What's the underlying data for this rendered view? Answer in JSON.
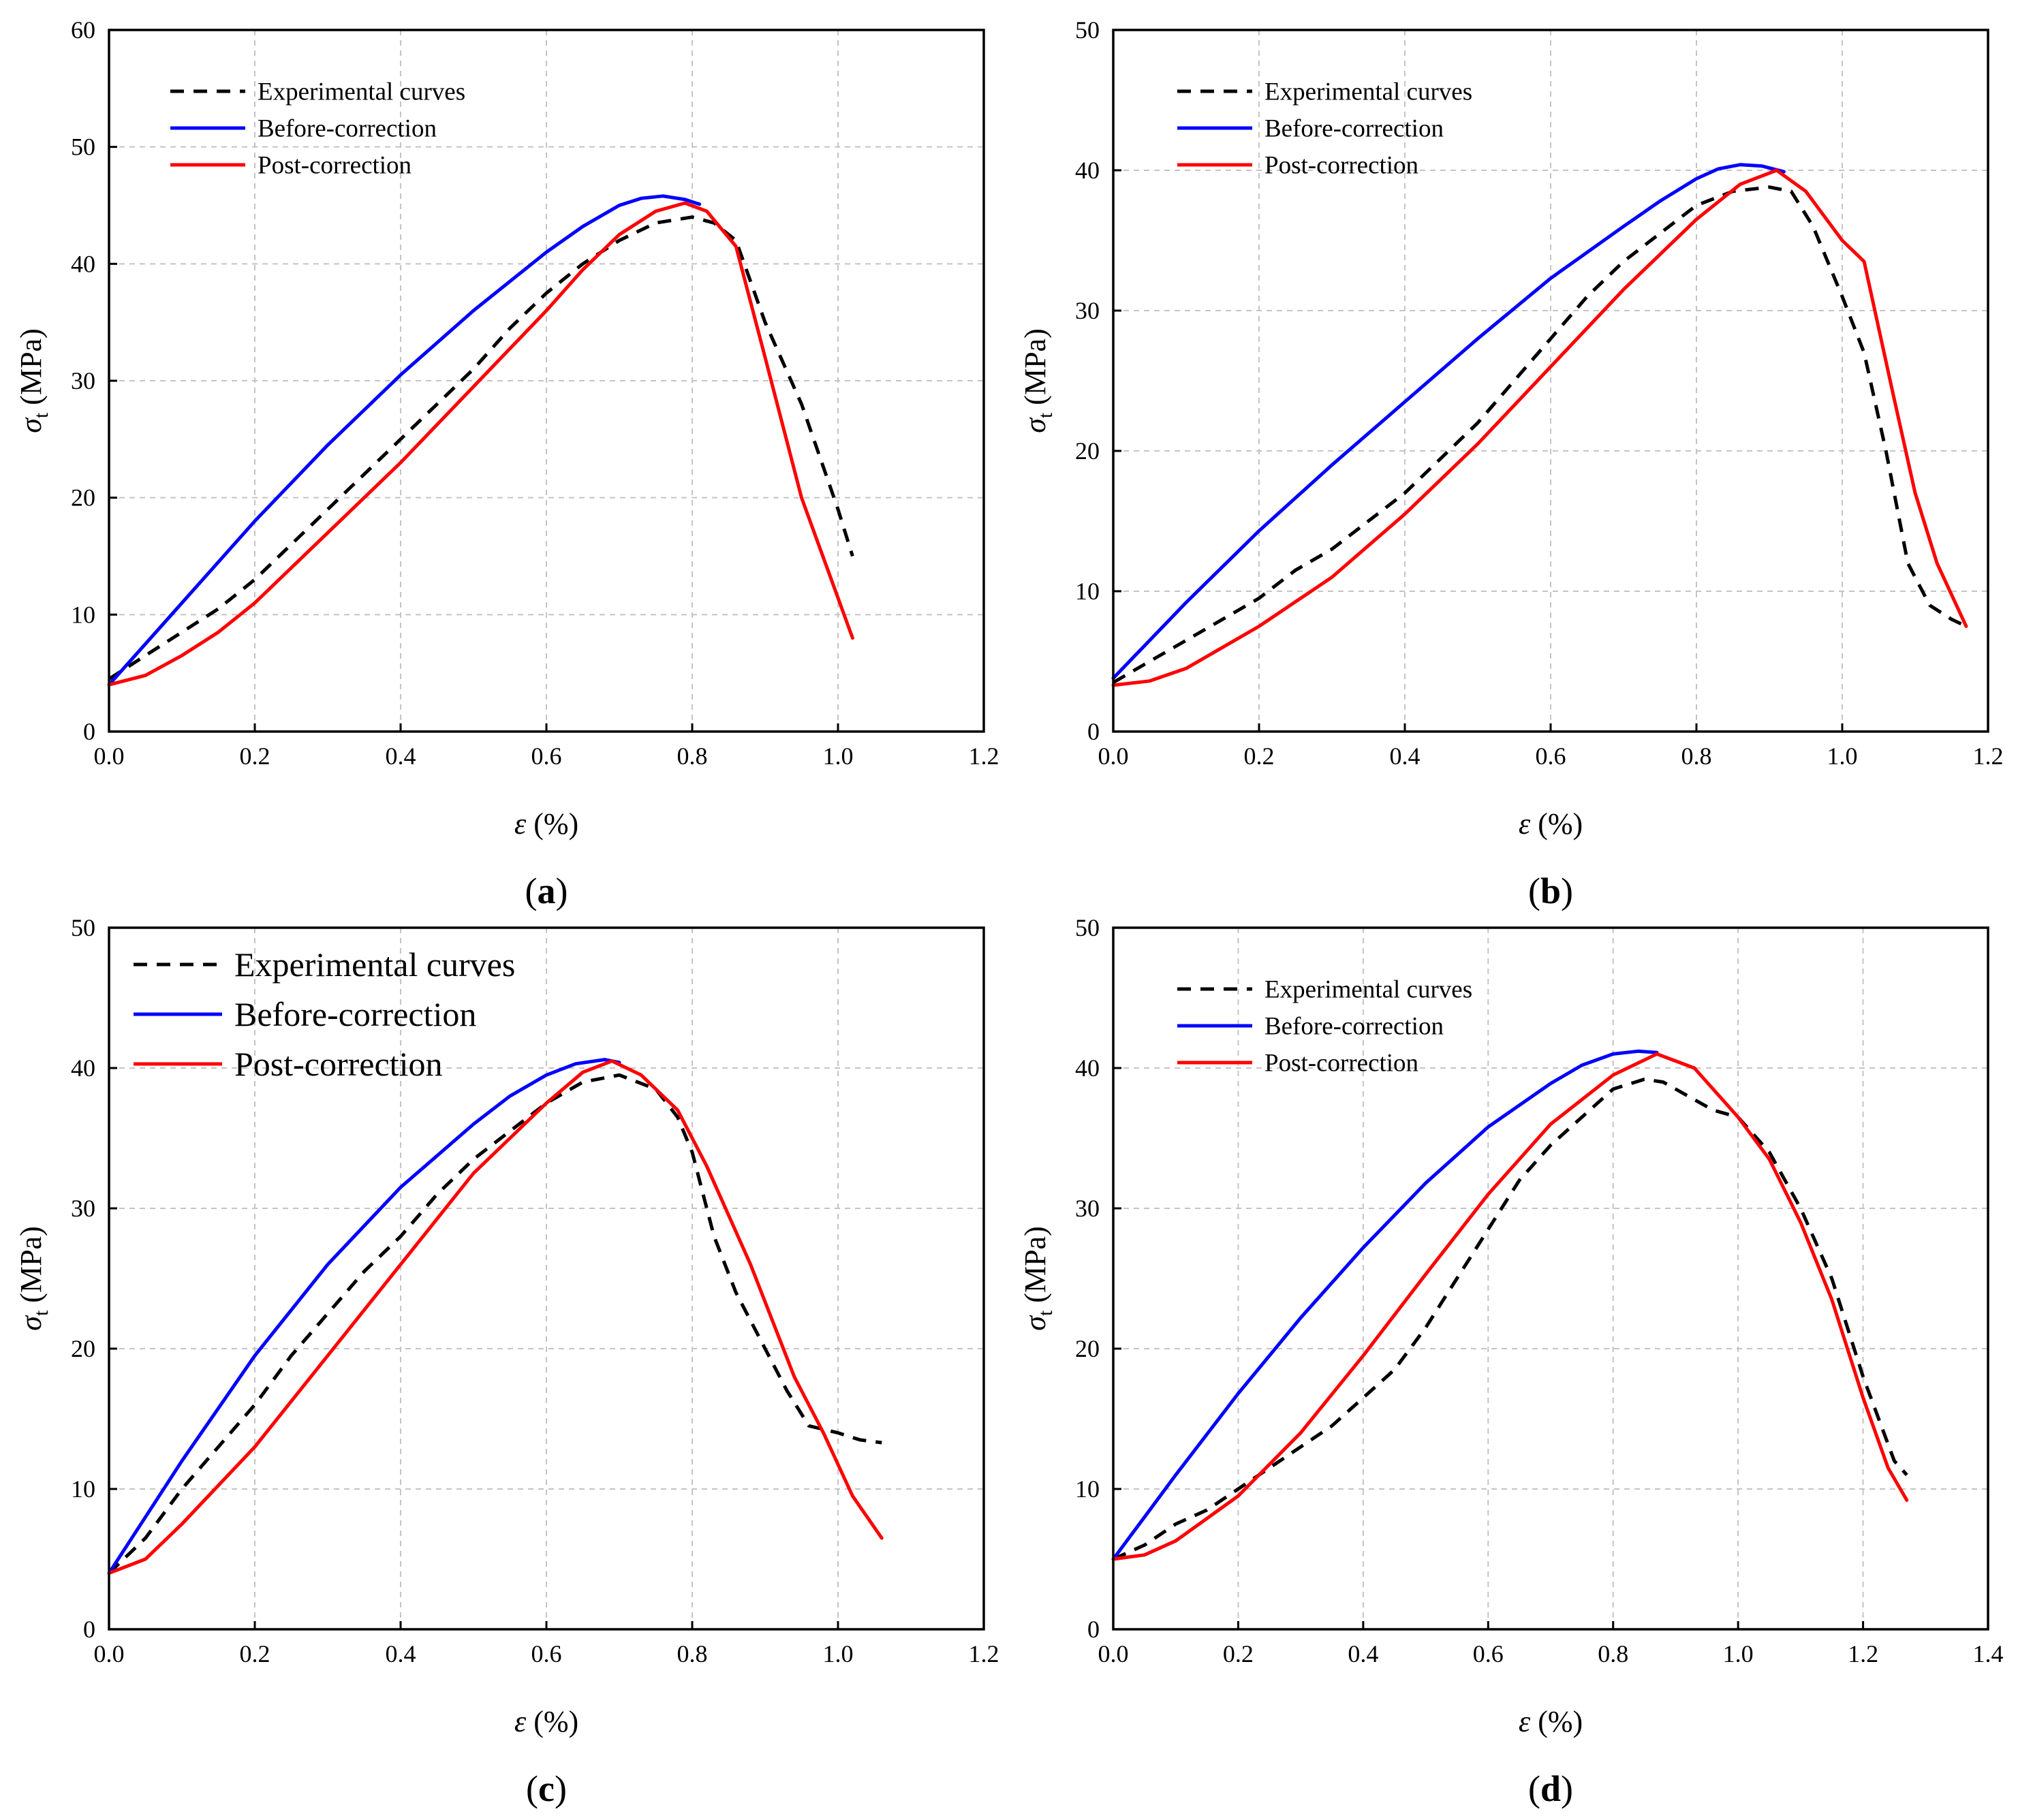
{
  "figure": {
    "xlabel_symbol": "ε",
    "xlabel_unit": "(%)",
    "ylabel_symbol": "σ",
    "ylabel_subscript": "t",
    "ylabel_unit": "(MPa)"
  },
  "colors": {
    "experimental": "#000000",
    "before": "#0000ff",
    "post": "#ff0000"
  },
  "chart_data": [
    {
      "type": "line",
      "panel_label": "(a)",
      "panel_letter": "a",
      "xlabel": "ε (%)",
      "ylabel": "σt (MPa)",
      "xlim": [
        0,
        1.2
      ],
      "ylim": [
        0,
        60
      ],
      "xticks": [
        "0.0",
        "0.2",
        "0.4",
        "0.6",
        "0.8",
        "1.0",
        "1.2"
      ],
      "yticks": [
        "0",
        "10",
        "20",
        "30",
        "40",
        "50",
        "60"
      ],
      "legend_position": "top-left",
      "series": [
        {
          "name": "Experimental curves",
          "style": "dashed",
          "color": "#000000",
          "x": [
            0,
            0.05,
            0.1,
            0.15,
            0.2,
            0.25,
            0.3,
            0.35,
            0.4,
            0.45,
            0.5,
            0.55,
            0.6,
            0.65,
            0.7,
            0.75,
            0.8,
            0.83,
            0.86,
            0.9,
            0.95,
            1.0,
            1.02
          ],
          "y": [
            4.5,
            6.5,
            8.5,
            10.5,
            13,
            16,
            19,
            22,
            25,
            28,
            31,
            34.5,
            37.5,
            40,
            42,
            43.5,
            44,
            43.5,
            42,
            35,
            28,
            19,
            15
          ]
        },
        {
          "name": "Before-correction",
          "style": "solid",
          "color": "#0000ff",
          "x": [
            0,
            0.05,
            0.1,
            0.15,
            0.2,
            0.3,
            0.4,
            0.5,
            0.6,
            0.65,
            0.7,
            0.73,
            0.76,
            0.79,
            0.81
          ],
          "y": [
            4,
            7.5,
            11,
            14.5,
            18,
            24.5,
            30.5,
            36,
            41,
            43.2,
            45,
            45.6,
            45.8,
            45.5,
            45.1
          ]
        },
        {
          "name": "Post-correction",
          "style": "solid",
          "color": "#ff0000",
          "x": [
            0,
            0.05,
            0.1,
            0.15,
            0.2,
            0.3,
            0.4,
            0.5,
            0.6,
            0.65,
            0.7,
            0.75,
            0.79,
            0.82,
            0.86,
            0.9,
            0.95,
            1.02
          ],
          "y": [
            4,
            4.8,
            6.5,
            8.5,
            11,
            17,
            23,
            29.5,
            36,
            39.5,
            42.5,
            44.5,
            45.2,
            44.5,
            41.5,
            32,
            20,
            8
          ]
        }
      ]
    },
    {
      "type": "line",
      "panel_label": "(b)",
      "panel_letter": "b",
      "xlabel": "ε (%)",
      "ylabel": "σt (MPa)",
      "xlim": [
        0,
        1.2
      ],
      "ylim": [
        0,
        50
      ],
      "xticks": [
        "0.0",
        "0.2",
        "0.4",
        "0.6",
        "0.8",
        "1.0",
        "1.2"
      ],
      "yticks": [
        "0",
        "10",
        "20",
        "30",
        "40",
        "50"
      ],
      "legend_position": "top-left",
      "series": [
        {
          "name": "Experimental curves",
          "style": "dashed",
          "color": "#000000",
          "x": [
            0,
            0.05,
            0.1,
            0.15,
            0.2,
            0.25,
            0.3,
            0.35,
            0.4,
            0.45,
            0.5,
            0.55,
            0.6,
            0.65,
            0.7,
            0.75,
            0.8,
            0.85,
            0.9,
            0.93,
            0.96,
            1.0,
            1.03,
            1.06,
            1.09,
            1.12,
            1.15,
            1.17
          ],
          "y": [
            3.5,
            5,
            6.5,
            8,
            9.5,
            11.5,
            13,
            15,
            17,
            19.5,
            22,
            25,
            28,
            31,
            33.5,
            35.5,
            37.5,
            38.5,
            38.8,
            38.5,
            36,
            31,
            27,
            20,
            12,
            9,
            8,
            7.5
          ]
        },
        {
          "name": "Before-correction",
          "style": "solid",
          "color": "#0000ff",
          "x": [
            0,
            0.05,
            0.1,
            0.2,
            0.3,
            0.4,
            0.5,
            0.6,
            0.7,
            0.75,
            0.8,
            0.83,
            0.86,
            0.89,
            0.92
          ],
          "y": [
            3.8,
            6.5,
            9.2,
            14.3,
            19,
            23.5,
            28,
            32.3,
            36,
            37.8,
            39.4,
            40.1,
            40.4,
            40.3,
            39.9
          ]
        },
        {
          "name": "Post-correction",
          "style": "solid",
          "color": "#ff0000",
          "x": [
            0,
            0.05,
            0.1,
            0.2,
            0.3,
            0.4,
            0.5,
            0.6,
            0.7,
            0.8,
            0.86,
            0.91,
            0.95,
            1.0,
            1.03,
            1.07,
            1.1,
            1.13,
            1.17
          ],
          "y": [
            3.3,
            3.6,
            4.5,
            7.5,
            11,
            15.5,
            20.5,
            26,
            31.5,
            36.5,
            39,
            40,
            38.5,
            35,
            33.5,
            24,
            17,
            12,
            7.5
          ]
        }
      ]
    },
    {
      "type": "line",
      "panel_label": "(c)",
      "panel_letter": "c",
      "xlabel": "ε (%)",
      "ylabel": "σt (MPa)",
      "xlim": [
        0,
        1.2
      ],
      "ylim": [
        0,
        50
      ],
      "xticks": [
        "0.0",
        "0.2",
        "0.4",
        "0.6",
        "0.8",
        "1.0",
        "1.2"
      ],
      "yticks": [
        "0",
        "10",
        "20",
        "30",
        "40",
        "50"
      ],
      "legend_position": "top-left",
      "series": [
        {
          "name": "Experimental curves",
          "style": "dashed",
          "color": "#000000",
          "x": [
            0,
            0.05,
            0.1,
            0.15,
            0.2,
            0.25,
            0.3,
            0.35,
            0.4,
            0.45,
            0.5,
            0.55,
            0.6,
            0.65,
            0.7,
            0.75,
            0.78,
            0.8,
            0.83,
            0.86,
            0.9,
            0.93,
            0.96,
            1.0,
            1.03,
            1.06
          ],
          "y": [
            4,
            6.5,
            10,
            13,
            16,
            19.5,
            22.5,
            25.5,
            28,
            31,
            33.5,
            35.5,
            37.5,
            39,
            39.5,
            38.5,
            36.5,
            34,
            28,
            24,
            20,
            17,
            14.5,
            14,
            13.5,
            13.3
          ]
        },
        {
          "name": "Before-correction",
          "style": "solid",
          "color": "#0000ff",
          "x": [
            0,
            0.05,
            0.1,
            0.2,
            0.3,
            0.4,
            0.5,
            0.55,
            0.6,
            0.64,
            0.68,
            0.7
          ],
          "y": [
            4,
            8,
            12,
            19.5,
            26,
            31.5,
            36,
            38,
            39.5,
            40.3,
            40.6,
            40.4
          ]
        },
        {
          "name": "Post-correction",
          "style": "solid",
          "color": "#ff0000",
          "x": [
            0,
            0.05,
            0.1,
            0.2,
            0.3,
            0.4,
            0.5,
            0.6,
            0.65,
            0.69,
            0.73,
            0.78,
            0.82,
            0.88,
            0.94,
            0.98,
            1.02,
            1.06
          ],
          "y": [
            4,
            5,
            7.5,
            13,
            19.5,
            26,
            32.5,
            37.5,
            39.7,
            40.5,
            39.5,
            37,
            33,
            26,
            18,
            14,
            9.5,
            6.5
          ]
        }
      ]
    },
    {
      "type": "line",
      "panel_label": "(d)",
      "panel_letter": "d",
      "xlabel": "ε (%)",
      "ylabel": "σt (MPa)",
      "xlim": [
        0,
        1.4
      ],
      "ylim": [
        0,
        50
      ],
      "xticks": [
        "0.0",
        "0.2",
        "0.4",
        "0.6",
        "0.8",
        "1.0",
        "1.2",
        "1.4"
      ],
      "yticks": [
        "0",
        "10",
        "20",
        "30",
        "40",
        "50"
      ],
      "legend_position": "top-left",
      "series": [
        {
          "name": "Experimental curves",
          "style": "dashed",
          "color": "#000000",
          "x": [
            0,
            0.05,
            0.1,
            0.15,
            0.2,
            0.25,
            0.3,
            0.35,
            0.4,
            0.45,
            0.5,
            0.55,
            0.6,
            0.65,
            0.7,
            0.75,
            0.8,
            0.85,
            0.88,
            0.92,
            0.96,
            1.0,
            1.05,
            1.1,
            1.15,
            1.2,
            1.25,
            1.27
          ],
          "y": [
            5,
            6,
            7.5,
            8.5,
            10,
            11.5,
            13,
            14.5,
            16.5,
            18.5,
            21.5,
            25,
            28.5,
            32,
            34.5,
            36.5,
            38.5,
            39.2,
            39,
            38,
            37,
            36.5,
            34,
            30,
            25,
            18,
            12,
            11
          ]
        },
        {
          "name": "Before-correction",
          "style": "solid",
          "color": "#0000ff",
          "x": [
            0,
            0.05,
            0.1,
            0.2,
            0.3,
            0.4,
            0.5,
            0.6,
            0.7,
            0.75,
            0.8,
            0.84,
            0.87
          ],
          "y": [
            5,
            8,
            11,
            16.8,
            22.2,
            27.2,
            31.8,
            35.8,
            38.9,
            40.2,
            41,
            41.2,
            41.1
          ]
        },
        {
          "name": "Post-correction",
          "style": "solid",
          "color": "#ff0000",
          "x": [
            0,
            0.05,
            0.1,
            0.2,
            0.3,
            0.4,
            0.5,
            0.6,
            0.7,
            0.8,
            0.87,
            0.93,
            1.0,
            1.05,
            1.1,
            1.15,
            1.2,
            1.24,
            1.27
          ],
          "y": [
            5,
            5.3,
            6.3,
            9.5,
            14,
            19.5,
            25.3,
            31,
            36,
            39.5,
            41,
            40,
            36.5,
            33.5,
            29,
            23.5,
            16.5,
            11.5,
            9.2
          ]
        }
      ]
    }
  ]
}
